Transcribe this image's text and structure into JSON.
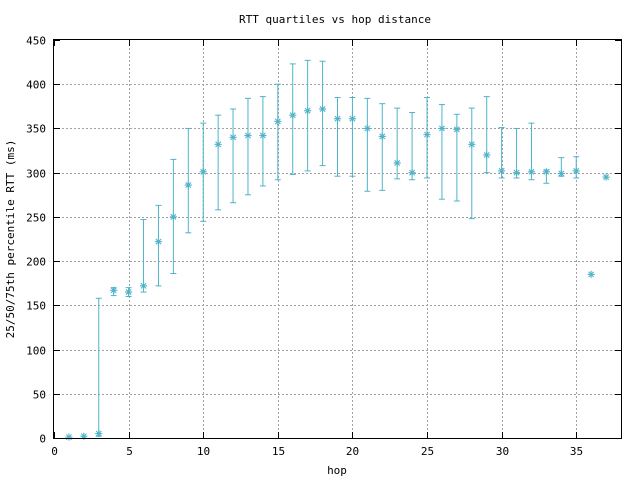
{
  "chart_data": {
    "type": "scatter",
    "title": "RTT quartiles vs hop distance",
    "xlabel": "hop",
    "ylabel": "25/50/75th percentile RTT (ms)",
    "xlim": [
      0,
      38
    ],
    "ylim": [
      0,
      450
    ],
    "xticks": [
      0,
      5,
      10,
      15,
      20,
      25,
      30,
      35
    ],
    "yticks": [
      0,
      50,
      100,
      150,
      200,
      250,
      300,
      350,
      400,
      450
    ],
    "grid": true,
    "legend": "none",
    "color": "#4fb3c9",
    "marker": "asterisk",
    "error_bars": "25th-75th percentile",
    "series": [
      {
        "x": [
          1,
          2,
          3,
          4,
          5,
          6,
          7,
          8,
          9,
          10,
          11,
          12,
          13,
          14,
          15,
          16,
          17,
          18,
          19,
          20,
          21,
          22,
          23,
          24,
          25,
          26,
          27,
          28,
          29,
          30,
          31,
          32,
          33,
          34,
          35,
          36,
          37
        ],
        "median": [
          1,
          2,
          5,
          167,
          165,
          172,
          222,
          250,
          286,
          301,
          332,
          340,
          342,
          342,
          358,
          365,
          370,
          372,
          361,
          361,
          350,
          341,
          311,
          300,
          343,
          350,
          349,
          332,
          320,
          302,
          300,
          301,
          301,
          299,
          302,
          185,
          295
        ],
        "p25": [
          1,
          2,
          2,
          161,
          160,
          165,
          172,
          186,
          232,
          245,
          258,
          266,
          275,
          285,
          292,
          298,
          302,
          308,
          296,
          296,
          279,
          280,
          293,
          292,
          294,
          270,
          268,
          248,
          300,
          294,
          294,
          292,
          288,
          296,
          294,
          185,
          295
        ],
        "p75": [
          1,
          2,
          158,
          170,
          170,
          247,
          263,
          315,
          350,
          356,
          365,
          372,
          384,
          386,
          400,
          423,
          427,
          426,
          385,
          385,
          384,
          378,
          373,
          368,
          385,
          377,
          366,
          373,
          386,
          351,
          350,
          356,
          303,
          317,
          318,
          185,
          295
        ]
      }
    ]
  }
}
